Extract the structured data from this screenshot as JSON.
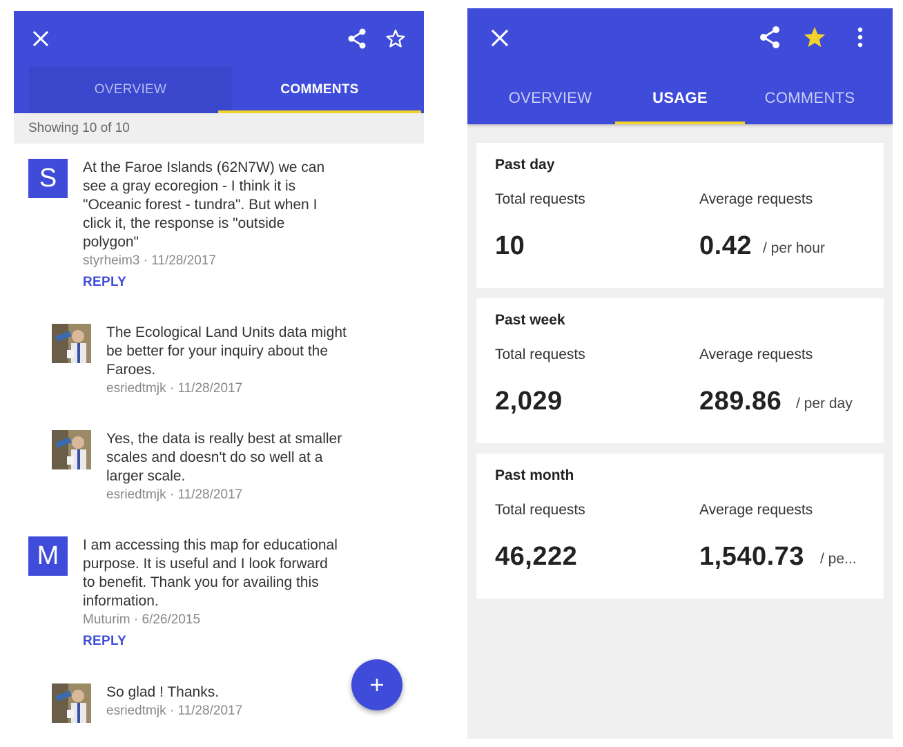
{
  "comments_panel": {
    "tabs": {
      "overview": "OVERVIEW",
      "comments": "COMMENTS"
    },
    "subheader": "Showing 10 of 10",
    "comments": [
      {
        "avatar": "S",
        "lines": [
          "At the Faroe Islands (62N7W) we can",
          "see a gray ecoregion - I think it is",
          "\"Oceanic forest - tundra\". But when I",
          "click it, the response is \"outside",
          "polygon\""
        ],
        "meta": "styrheim3 · 11/28/2017",
        "reply": "REPLY"
      },
      {
        "avatar": "photo",
        "lines": [
          "The Ecological Land Units data might",
          "be better for your inquiry about the",
          "Faroes."
        ],
        "meta": "esriedtmjk · 11/28/2017"
      },
      {
        "avatar": "photo",
        "lines": [
          "Yes, the data is really best at smaller",
          "scales and doesn't do so well at a",
          "larger scale."
        ],
        "meta": "esriedtmjk · 11/28/2017"
      },
      {
        "avatar": "M",
        "lines": [
          "I am accessing this map for educational",
          "purpose. It is useful and I look forward",
          "to benefit. Thank you for availing this",
          "information."
        ],
        "meta": "Muturim · 6/26/2015",
        "reply": "REPLY"
      },
      {
        "avatar": "photo",
        "lines": [
          "So glad ! Thanks."
        ],
        "meta": "esriedtmjk · 11/28/2017"
      }
    ],
    "fab_icon": "plus-icon"
  },
  "usage_panel": {
    "tabs": {
      "overview": "OVERVIEW",
      "usage": "USAGE",
      "comments": "COMMENTS"
    },
    "colors": {
      "accent": "#3f4cd9",
      "indicator": "#f2d22a",
      "star": "#f2d22a"
    },
    "cards": [
      {
        "title": "Past day",
        "total_label": "Total requests",
        "avg_label": "Average requests",
        "total": "10",
        "avg": "0.42",
        "unit": "/ per hour"
      },
      {
        "title": "Past week",
        "total_label": "Total requests",
        "avg_label": "Average requests",
        "total": "2,029",
        "avg": "289.86",
        "unit": "/ per day"
      },
      {
        "title": "Past month",
        "total_label": "Total requests",
        "avg_label": "Average requests",
        "total": "46,222",
        "avg": "1,540.73",
        "unit": "/ pe..."
      }
    ]
  }
}
